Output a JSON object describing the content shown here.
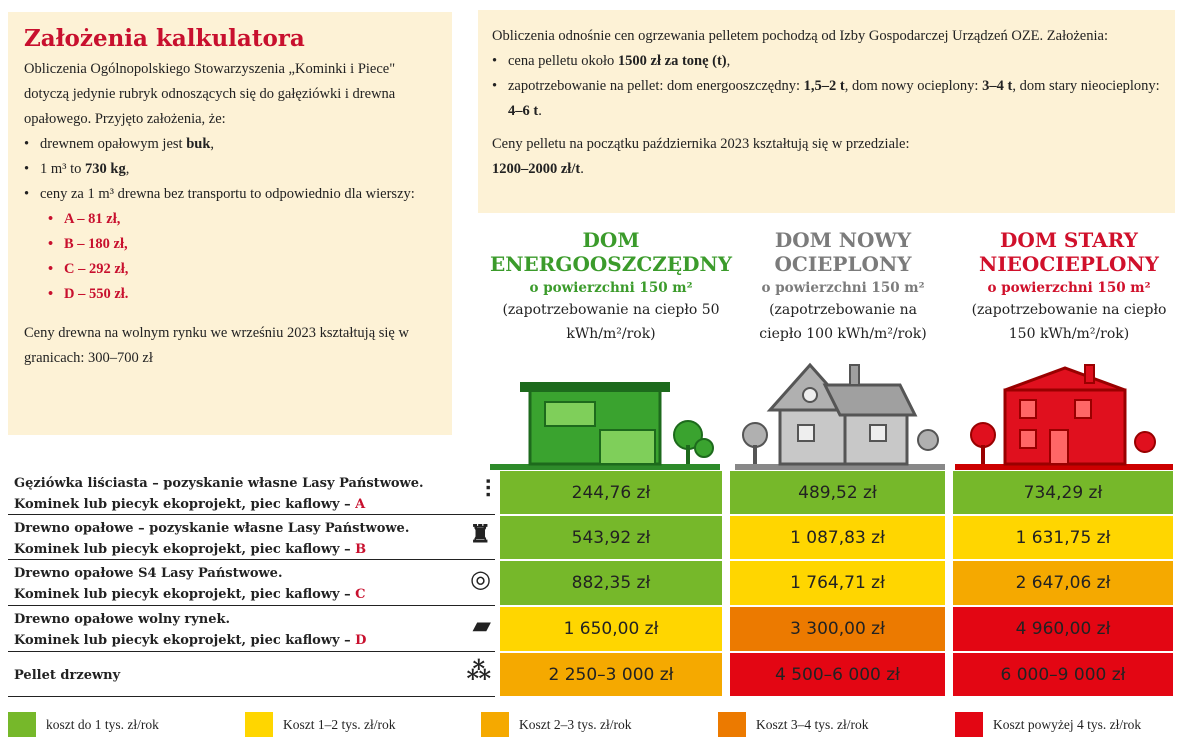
{
  "left": {
    "title": "Założenia kalkulatora",
    "intro": "Obliczenia Ogólnopolskiego Stowarzyszenia „Kominki i Piece\" dotyczą jedynie rubryk odnoszących się do gałęziówki i drewna opałowego. Przyjęto założenia, że:",
    "b1_pre": "drewnem opałowym jest ",
    "b1_bold": "buk",
    "b1_post": ",",
    "b2_pre": "1 m³ to ",
    "b2_bold": "730 kg",
    "b2_post": ",",
    "b3": "ceny za 1 m³ drewna bez transportu to odpowiednio dla wierszy:",
    "prices": [
      "A – 81 zł,",
      "B – 180 zł,",
      "C – 292 zł,",
      "D – 550 zł."
    ],
    "market": "Ceny drewna na wolnym rynku we wrześniu 2023 kształtują się w granicach: 300–700 zł"
  },
  "right": {
    "intro": "Obliczenia odnośnie cen ogrzewania pelletem pochodzą od Izby Gospodarczej Urządzeń OZE. Założenia:",
    "b1_pre": "cena pelletu około ",
    "b1_bold": "1500 zł za tonę (t)",
    "b1_post": ",",
    "b2_pre": "zapotrzebowanie na pellet: dom energooszczędny: ",
    "b2_bold1": "1,5–2 t",
    "b2_mid1": ", dom nowy ocieplony: ",
    "b2_bold2": "3–4 t",
    "b2_mid2": ", dom stary nieocieplony: ",
    "b2_bold3": "4–6 t",
    "b2_post": ".",
    "prices_pre": "Ceny pelletu na początku października 2023 kształtują się w przedziale:",
    "prices_bold": "1200–2000 zł/t",
    "prices_post": "."
  },
  "columns": [
    {
      "title": "DOM ENERGOOSZCZĘDNY",
      "area": "o powierzchni 150 m²",
      "demand": "(zapotrzebowanie na ciepło 50 kWh/m²/rok)",
      "color": "#3b9b2b"
    },
    {
      "title": "DOM NOWY OCIEPLONY",
      "area": "o powierzchni 150 m²",
      "demand": "(zapotrzebowanie na ciepło 100 kWh/m²/rok)",
      "color": "#7b7b7b"
    },
    {
      "title": "DOM STARY NIEOCIEPLONY",
      "area": "o powierzchni 150 m²",
      "demand": "(zapotrzebowanie na ciepło 150 kWh/m²/rok)",
      "color": "#d0102b"
    }
  ],
  "rows": [
    {
      "line1": "Gęziówka liściasta – pozyskanie własne Lasy Państwowe.",
      "line2": "Kominek lub piecyk ekoprojekt, piec kaflowy – ",
      "letter": "A",
      "icon": "branches-icon",
      "values": [
        "244,76 zł",
        "489,52 zł",
        "734,29 zł"
      ],
      "levels": [
        "green",
        "green",
        "green"
      ]
    },
    {
      "line1": "Drewno opałowe – pozyskanie własne Lasy Państwowe.",
      "line2": "Kominek lub piecyk ekoprojekt, piec kaflowy – ",
      "letter": "B",
      "icon": "stump-icon",
      "values": [
        "543,92 zł",
        "1 087,83 zł",
        "1 631,75 zł"
      ],
      "levels": [
        "green",
        "yellow",
        "yellow"
      ]
    },
    {
      "line1": "Drewno opałowe S4 Lasy Państwowe.",
      "line2": "Kominek lub piecyk ekoprojekt, piec kaflowy – ",
      "letter": "C",
      "icon": "logs-icon",
      "values": [
        "882,35 zł",
        "1 764,71 zł",
        "2 647,06 zł"
      ],
      "levels": [
        "green",
        "yellow",
        "lightorange"
      ]
    },
    {
      "line1": "Drewno opałowe wolny rynek.",
      "line2": "Kominek lub piecyk ekoprojekt, piec kaflowy – ",
      "letter": "D",
      "icon": "log-pile-icon",
      "values": [
        "1 650,00 zł",
        "3 300,00 zł",
        "4 960,00 zł"
      ],
      "levels": [
        "yellow",
        "orange",
        "red"
      ]
    },
    {
      "line1": "Pellet drzewny",
      "line2": "",
      "letter": "",
      "icon": "pellet-icon",
      "values": [
        "2 250–3 000 zł",
        "4 500–6 000 zł",
        "6 000–9 000 zł"
      ],
      "levels": [
        "lightorange",
        "red",
        "red"
      ]
    }
  ],
  "legend": [
    {
      "label": "koszt do 1 tys. zł/rok",
      "level": "green"
    },
    {
      "label": "Koszt 1–2 tys. zł/rok",
      "level": "yellow"
    },
    {
      "label": "Koszt 2–3 tys. zł/rok",
      "level": "lightorange"
    },
    {
      "label": "Koszt 3–4 tys. zł/rok",
      "level": "orange"
    },
    {
      "label": "Koszt powyżej 4 tys. zł/rok",
      "level": "red"
    }
  ],
  "colors": {
    "green": "#76b82a",
    "yellow": "#ffd600",
    "lightorange": "#f5a900",
    "orange": "#ec7a00",
    "red": "#e30613"
  }
}
